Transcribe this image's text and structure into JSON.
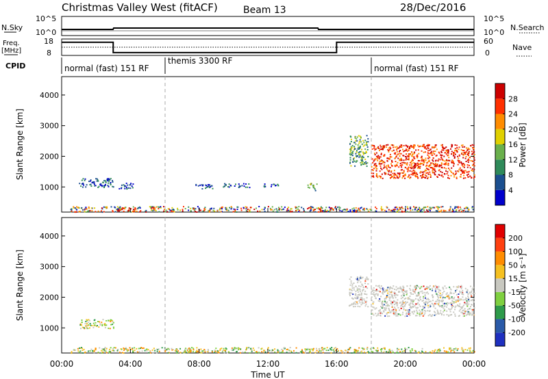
{
  "header": {
    "title": "Christmas Valley West (fitACF)",
    "beam": "Beam 13",
    "date": "28/Dec/2016"
  },
  "strips": {
    "nsky_label": "N.Sky",
    "nsky_ticks": [
      "10^5",
      "10^0"
    ],
    "nsearch_label": "N.Search",
    "nsearch_ticks": [
      "10^5",
      "10^0"
    ],
    "freq_label_1": "Freq.",
    "freq_label_2": "[MHz]",
    "freq_ticks": [
      "18",
      "8"
    ],
    "nave_label": "Nave",
    "nave_ticks": [
      "60",
      "0"
    ],
    "cpid_label": "CPID",
    "freq_steps": [
      {
        "start_h": 0,
        "end_h": 3.0,
        "mhz": 16.0
      },
      {
        "start_h": 3.0,
        "end_h": 16.0,
        "mhz": 9.7
      },
      {
        "start_h": 16.0,
        "end_h": 24.0,
        "mhz": 16.0
      }
    ],
    "cpid_segments": [
      {
        "start_h": 0,
        "label": "normal (fast) 151 RF"
      },
      {
        "start_h": 6.0,
        "label": "themis 3300 RF"
      },
      {
        "start_h": 18.0,
        "label": "normal (fast) 151 RF"
      }
    ]
  },
  "chart_data": [
    {
      "type": "heatmap",
      "panel": "power",
      "ylabel": "Slant Range [km]",
      "xlabel": "",
      "xlim": [
        0,
        24
      ],
      "ylim": [
        180,
        4600
      ],
      "yticks": [
        1000,
        2000,
        3000,
        4000
      ],
      "colorbar": {
        "label": "Power [dB]",
        "ticks": [
          "28",
          "24",
          "20",
          "16",
          "12",
          "8",
          "4"
        ],
        "colors": [
          "#0000cc",
          "#1b4f8f",
          "#2f8a5a",
          "#6ab04c",
          "#e0d000",
          "#ff8c00",
          "#ff3000",
          "#cc0000"
        ]
      },
      "echo_regions": [
        {
          "x": [
            0.5,
            24
          ],
          "y": [
            200,
            380
          ],
          "level": "mixed"
        },
        {
          "x": [
            3.1,
            4.3
          ],
          "y": [
            220,
            350
          ],
          "level": "high"
        },
        {
          "x": [
            14.6,
            15.1
          ],
          "y": [
            220,
            350
          ],
          "level": "high"
        },
        {
          "x": [
            1.0,
            3.0
          ],
          "y": [
            1000,
            1300
          ],
          "level": "low"
        },
        {
          "x": [
            3.3,
            4.2
          ],
          "y": [
            950,
            1150
          ],
          "level": "low"
        },
        {
          "x": [
            7.6,
            8.8
          ],
          "y": [
            950,
            1100
          ],
          "level": "low"
        },
        {
          "x": [
            9.3,
            11.0
          ],
          "y": [
            1000,
            1130
          ],
          "level": "low"
        },
        {
          "x": [
            11.6,
            12.6
          ],
          "y": [
            1000,
            1120
          ],
          "level": "low"
        },
        {
          "x": [
            14.3,
            14.9
          ],
          "y": [
            900,
            1150
          ],
          "level": "medium"
        },
        {
          "x": [
            16.7,
            17.8
          ],
          "y": [
            1700,
            2700
          ],
          "level": "medium"
        },
        {
          "x": [
            18.0,
            24.0
          ],
          "y": [
            1300,
            2400
          ],
          "level": "high"
        }
      ]
    },
    {
      "type": "heatmap",
      "panel": "velocity",
      "ylabel": "Slant Range [km]",
      "xlabel": "Time UT",
      "xlim": [
        0,
        24
      ],
      "ylim": [
        180,
        4600
      ],
      "yticks": [
        1000,
        2000,
        3000,
        4000
      ],
      "xticks": [
        "00:00",
        "04:00",
        "08:00",
        "12:00",
        "16:00",
        "20:00",
        "00:00"
      ],
      "colorbar": {
        "label": "Velocity [m s⁻¹]",
        "ticks": [
          "200",
          "100",
          "50",
          "15",
          "-15",
          "-50",
          "-100",
          "-200"
        ],
        "colors": [
          "#1e30c0",
          "#2a5aa8",
          "#2e9a4a",
          "#7fd040",
          "#c8c8c0",
          "#f5c020",
          "#ff8c00",
          "#ff4010",
          "#e00000"
        ]
      },
      "echo_regions": [
        {
          "x": [
            0.5,
            24
          ],
          "y": [
            200,
            380
          ],
          "level": "mixed"
        },
        {
          "x": [
            1.0,
            3.0
          ],
          "y": [
            1000,
            1300
          ],
          "level": "mixed"
        },
        {
          "x": [
            16.7,
            17.8
          ],
          "y": [
            1700,
            2700
          ],
          "level": "ground"
        },
        {
          "x": [
            18.0,
            24.0
          ],
          "y": [
            1400,
            2400
          ],
          "level": "ground"
        }
      ]
    }
  ]
}
